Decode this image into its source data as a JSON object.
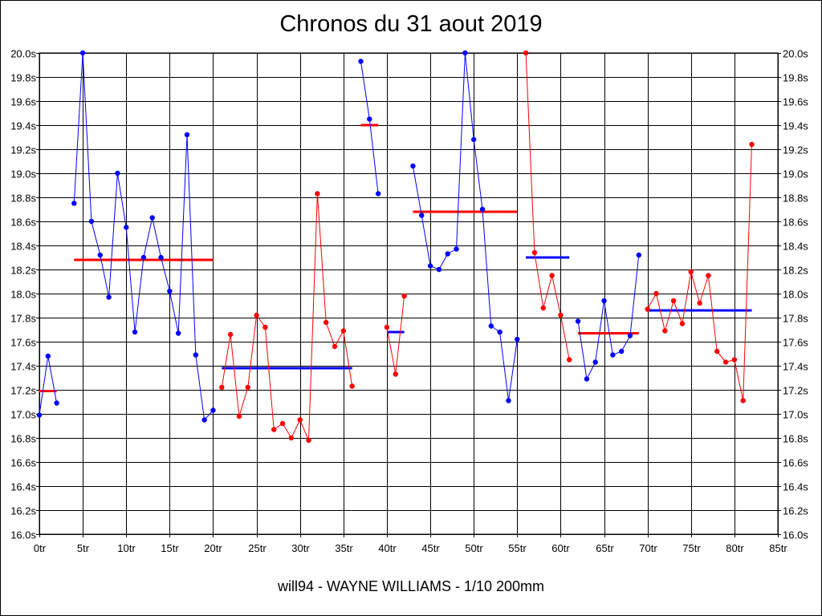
{
  "chart_data": {
    "type": "line",
    "title": "Chronos du 31 aout 2019",
    "subtitle": "will94 - WAYNE WILLIAMS - 1/10 200mm",
    "xlabel": "",
    "ylabel": "",
    "xlim": [
      0,
      85
    ],
    "ylim": [
      16.0,
      20.0
    ],
    "grid": true,
    "x_tick_labels": [
      "0tr",
      "5tr",
      "10tr",
      "15tr",
      "20tr",
      "25tr",
      "30tr",
      "35tr",
      "40tr",
      "45tr",
      "50tr",
      "55tr",
      "60tr",
      "65tr",
      "70tr",
      "75tr",
      "80tr",
      "85tr"
    ],
    "x_tick_values": [
      0,
      5,
      10,
      15,
      20,
      25,
      30,
      35,
      40,
      45,
      50,
      55,
      60,
      65,
      70,
      75,
      80,
      85
    ],
    "y_tick_labels": [
      "16.0s",
      "16.2s",
      "16.4s",
      "16.6s",
      "16.8s",
      "17.0s",
      "17.2s",
      "17.4s",
      "17.6s",
      "17.8s",
      "18.0s",
      "18.2s",
      "18.4s",
      "18.6s",
      "18.8s",
      "19.0s",
      "19.2s",
      "19.4s",
      "19.6s",
      "19.8s",
      "20.0s"
    ],
    "y_tick_values": [
      16.0,
      16.2,
      16.4,
      16.6,
      16.8,
      17.0,
      17.2,
      17.4,
      17.6,
      17.8,
      18.0,
      18.2,
      18.4,
      18.6,
      18.8,
      19.0,
      19.2,
      19.4,
      19.6,
      19.8,
      20.0
    ],
    "colors": {
      "blue": "#0000ff",
      "red": "#ff0000"
    },
    "series": [
      {
        "color": "blue",
        "points": [
          [
            0,
            16.99
          ],
          [
            1,
            17.48
          ],
          [
            2,
            17.09
          ]
        ]
      },
      {
        "color": "blue",
        "points": [
          [
            4,
            18.75
          ],
          [
            5,
            20.0
          ],
          [
            6,
            18.6
          ],
          [
            7,
            18.32
          ],
          [
            8,
            17.97
          ],
          [
            9,
            19.0
          ],
          [
            10,
            18.55
          ],
          [
            11,
            17.68
          ],
          [
            12,
            18.3
          ],
          [
            13,
            18.63
          ],
          [
            14,
            18.3
          ],
          [
            15,
            18.02
          ],
          [
            16,
            17.67
          ],
          [
            17,
            19.32
          ],
          [
            18,
            17.49
          ],
          [
            19,
            16.95
          ],
          [
            20,
            17.03
          ]
        ]
      },
      {
        "color": "red",
        "points": [
          [
            21,
            17.22
          ],
          [
            22,
            17.66
          ],
          [
            23,
            16.98
          ],
          [
            24,
            17.22
          ],
          [
            25,
            17.82
          ],
          [
            26,
            17.72
          ],
          [
            27,
            16.87
          ],
          [
            28,
            16.92
          ],
          [
            29,
            16.8
          ],
          [
            30,
            16.95
          ],
          [
            31,
            16.78
          ],
          [
            32,
            18.83
          ],
          [
            33,
            17.76
          ],
          [
            34,
            17.56
          ],
          [
            35,
            17.69
          ],
          [
            36,
            17.23
          ]
        ]
      },
      {
        "color": "blue",
        "points": [
          [
            37,
            19.93
          ],
          [
            38,
            19.45
          ],
          [
            39,
            18.83
          ]
        ]
      },
      {
        "color": "red",
        "points": [
          [
            40,
            17.72
          ],
          [
            41,
            17.33
          ],
          [
            42,
            17.98
          ]
        ]
      },
      {
        "color": "blue",
        "points": [
          [
            43,
            19.06
          ],
          [
            44,
            18.65
          ],
          [
            45,
            18.23
          ],
          [
            46,
            18.2
          ],
          [
            47,
            18.33
          ],
          [
            48,
            18.37
          ],
          [
            49,
            20.0
          ],
          [
            50,
            19.28
          ],
          [
            51,
            18.7
          ],
          [
            52,
            17.73
          ],
          [
            53,
            17.68
          ],
          [
            54,
            17.11
          ],
          [
            55,
            17.62
          ]
        ]
      },
      {
        "color": "red",
        "points": [
          [
            56,
            20.0
          ],
          [
            57,
            18.34
          ],
          [
            58,
            17.88
          ],
          [
            59,
            18.15
          ],
          [
            60,
            17.82
          ],
          [
            61,
            17.45
          ]
        ]
      },
      {
        "color": "blue",
        "points": [
          [
            62,
            17.77
          ],
          [
            63,
            17.29
          ],
          [
            64,
            17.43
          ],
          [
            65,
            17.94
          ],
          [
            66,
            17.49
          ],
          [
            67,
            17.52
          ],
          [
            68,
            17.65
          ],
          [
            69,
            18.32
          ]
        ]
      },
      {
        "color": "red",
        "points": [
          [
            70,
            17.87
          ],
          [
            71,
            18.0
          ],
          [
            72,
            17.69
          ],
          [
            73,
            17.94
          ],
          [
            74,
            17.75
          ],
          [
            75,
            18.18
          ],
          [
            76,
            17.92
          ],
          [
            77,
            18.15
          ],
          [
            78,
            17.52
          ],
          [
            79,
            17.43
          ],
          [
            80,
            17.45
          ],
          [
            81,
            17.11
          ],
          [
            82,
            19.24
          ]
        ]
      }
    ],
    "averages": [
      {
        "color": "red",
        "x": [
          0,
          2
        ],
        "y": 17.19
      },
      {
        "color": "red",
        "x": [
          4,
          20
        ],
        "y": 18.28
      },
      {
        "color": "blue",
        "x": [
          21,
          36
        ],
        "y": 17.38
      },
      {
        "color": "red",
        "x": [
          37,
          39
        ],
        "y": 19.4
      },
      {
        "color": "blue",
        "x": [
          40,
          42
        ],
        "y": 17.68
      },
      {
        "color": "red",
        "x": [
          43,
          55
        ],
        "y": 18.68
      },
      {
        "color": "blue",
        "x": [
          56,
          61
        ],
        "y": 18.3
      },
      {
        "color": "red",
        "x": [
          62,
          69
        ],
        "y": 17.67
      },
      {
        "color": "blue",
        "x": [
          70,
          82
        ],
        "y": 17.86
      }
    ]
  }
}
